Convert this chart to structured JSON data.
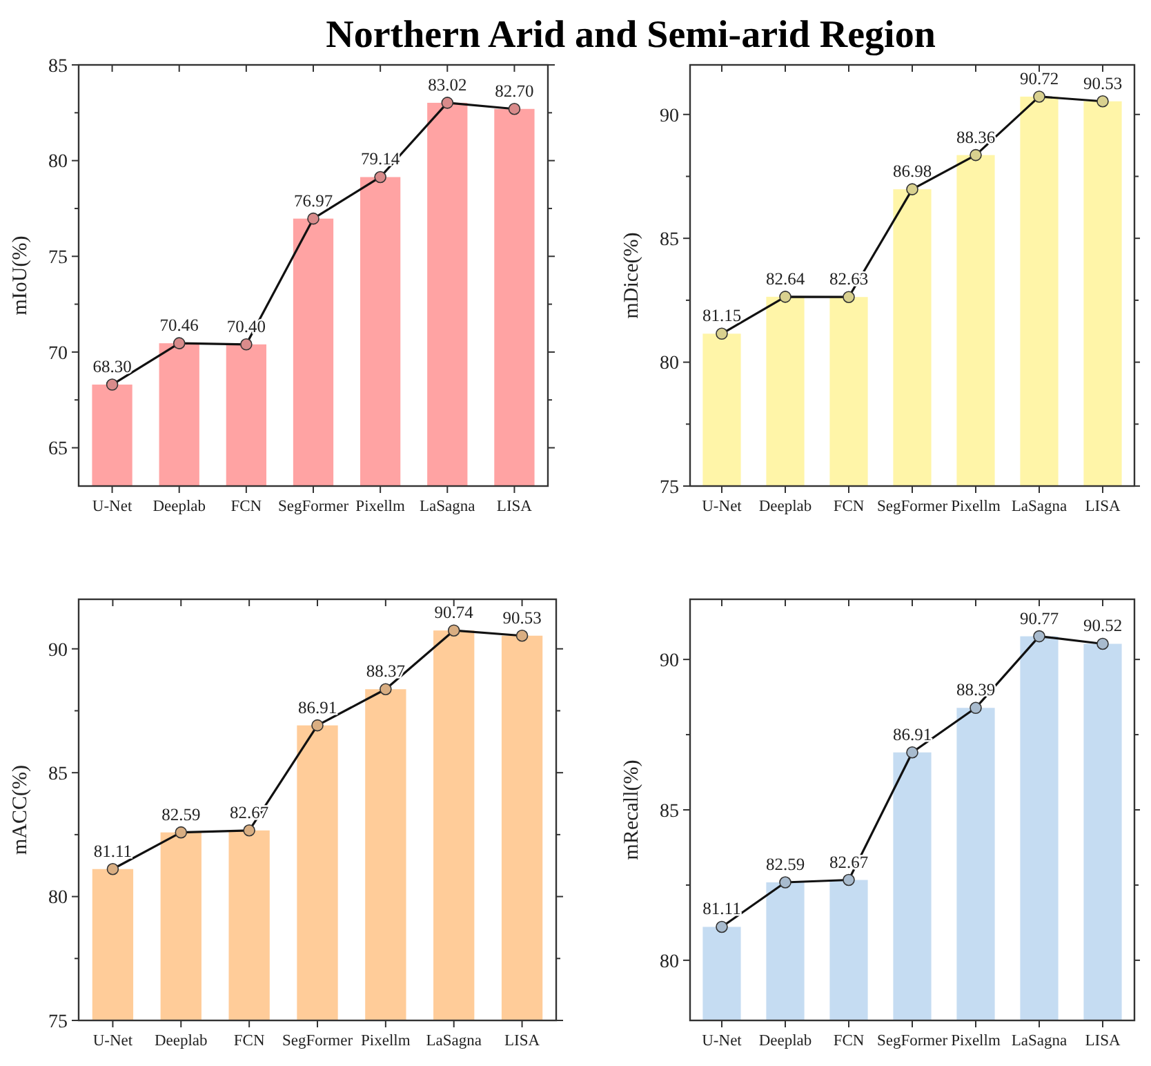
{
  "chart_data": [
    {
      "type": "bar",
      "title": "Northern Arid and Semi-arid Region",
      "ylabel": "mIoU(%)",
      "categories": [
        "U-Net",
        "Deeplab",
        "FCN",
        "SegFormer",
        "Pixellm",
        "LaSagna",
        "LISA"
      ],
      "ylim": [
        63,
        85
      ],
      "yticks": [
        65,
        {
          "value": 67.5,
          "label": null
        },
        70,
        {
          "value": 72.5,
          "label": null
        },
        75,
        {
          "value": 77.5,
          "label": null
        },
        80,
        {
          "value": 82.5,
          "label": null
        },
        85
      ],
      "marker": "circle",
      "series": [
        {
          "color": "#ffa3a3",
          "values": [
            68.3,
            70.46,
            70.4,
            76.97,
            79.14,
            83.02,
            82.7
          ]
        },
        {
          "type": "line",
          "color": "#111111",
          "values": [
            68.3,
            70.46,
            70.4,
            76.97,
            79.14,
            83.02,
            82.7
          ],
          "value_labels": [
            "68.30",
            "70.46",
            "70.40",
            "76.97",
            "79.14",
            "83.02",
            "82.70"
          ]
        }
      ]
    },
    {
      "type": "bar",
      "ylabel": "mDice(%)",
      "categories": [
        "U-Net",
        "Deeplab",
        "FCN",
        "SegFormer",
        "Pixellm",
        "LaSagna",
        "LISA"
      ],
      "ylim": [
        75,
        92
      ],
      "yticks": [
        75,
        {
          "value": 77.5,
          "label": null
        },
        80,
        {
          "value": 82.5,
          "label": null
        },
        85,
        {
          "value": 87.5,
          "label": null
        },
        90
      ],
      "marker": "circle",
      "series": [
        {
          "color": "#fff5a8",
          "values": [
            81.15,
            82.64,
            82.63,
            86.98,
            88.36,
            90.72,
            90.53
          ]
        },
        {
          "type": "line",
          "color": "#111111",
          "values": [
            81.15,
            82.64,
            82.63,
            86.98,
            88.36,
            90.72,
            90.53
          ],
          "value_labels": [
            "81.15",
            "82.64",
            "82.63",
            "86.98",
            "88.36",
            "90.72",
            "90.53"
          ]
        }
      ]
    },
    {
      "type": "bar",
      "ylabel": "mACC(%)",
      "categories": [
        "U-Net",
        "Deeplab",
        "FCN",
        "SegFormer",
        "Pixellm",
        "LaSagna",
        "LISA"
      ],
      "ylim": [
        75,
        92
      ],
      "yticks": [
        75,
        {
          "value": 77.5,
          "label": null
        },
        80,
        {
          "value": 82.5,
          "label": null
        },
        85,
        {
          "value": 87.5,
          "label": null
        },
        90
      ],
      "marker": "circle",
      "series": [
        {
          "color": "#ffcc99",
          "values": [
            81.11,
            82.59,
            82.67,
            86.91,
            88.37,
            90.74,
            90.53
          ]
        },
        {
          "type": "line",
          "color": "#111111",
          "values": [
            81.11,
            82.59,
            82.67,
            86.91,
            88.37,
            90.74,
            90.53
          ],
          "value_labels": [
            "81.11",
            "82.59",
            "82.67",
            "86.91",
            "88.37",
            "90.74",
            "90.53"
          ]
        }
      ]
    },
    {
      "type": "bar",
      "ylabel": "mRecall(%)",
      "categories": [
        "U-Net",
        "Deeplab",
        "FCN",
        "SegFormer",
        "Pixellm",
        "LaSagna",
        "LISA"
      ],
      "ylim": [
        78,
        92
      ],
      "yticks": [
        80,
        {
          "value": 82.5,
          "label": null
        },
        85,
        {
          "value": 87.5,
          "label": null
        },
        90
      ],
      "marker": "circle",
      "series": [
        {
          "color": "#c5dcf2",
          "values": [
            81.11,
            82.59,
            82.67,
            86.91,
            88.39,
            90.77,
            90.52
          ]
        },
        {
          "type": "line",
          "color": "#111111",
          "values": [
            81.11,
            82.59,
            82.67,
            86.91,
            88.39,
            90.77,
            90.52
          ],
          "value_labels": [
            "81.11",
            "82.59",
            "82.67",
            "86.91",
            "88.39",
            "90.77",
            "90.52"
          ]
        }
      ]
    }
  ]
}
